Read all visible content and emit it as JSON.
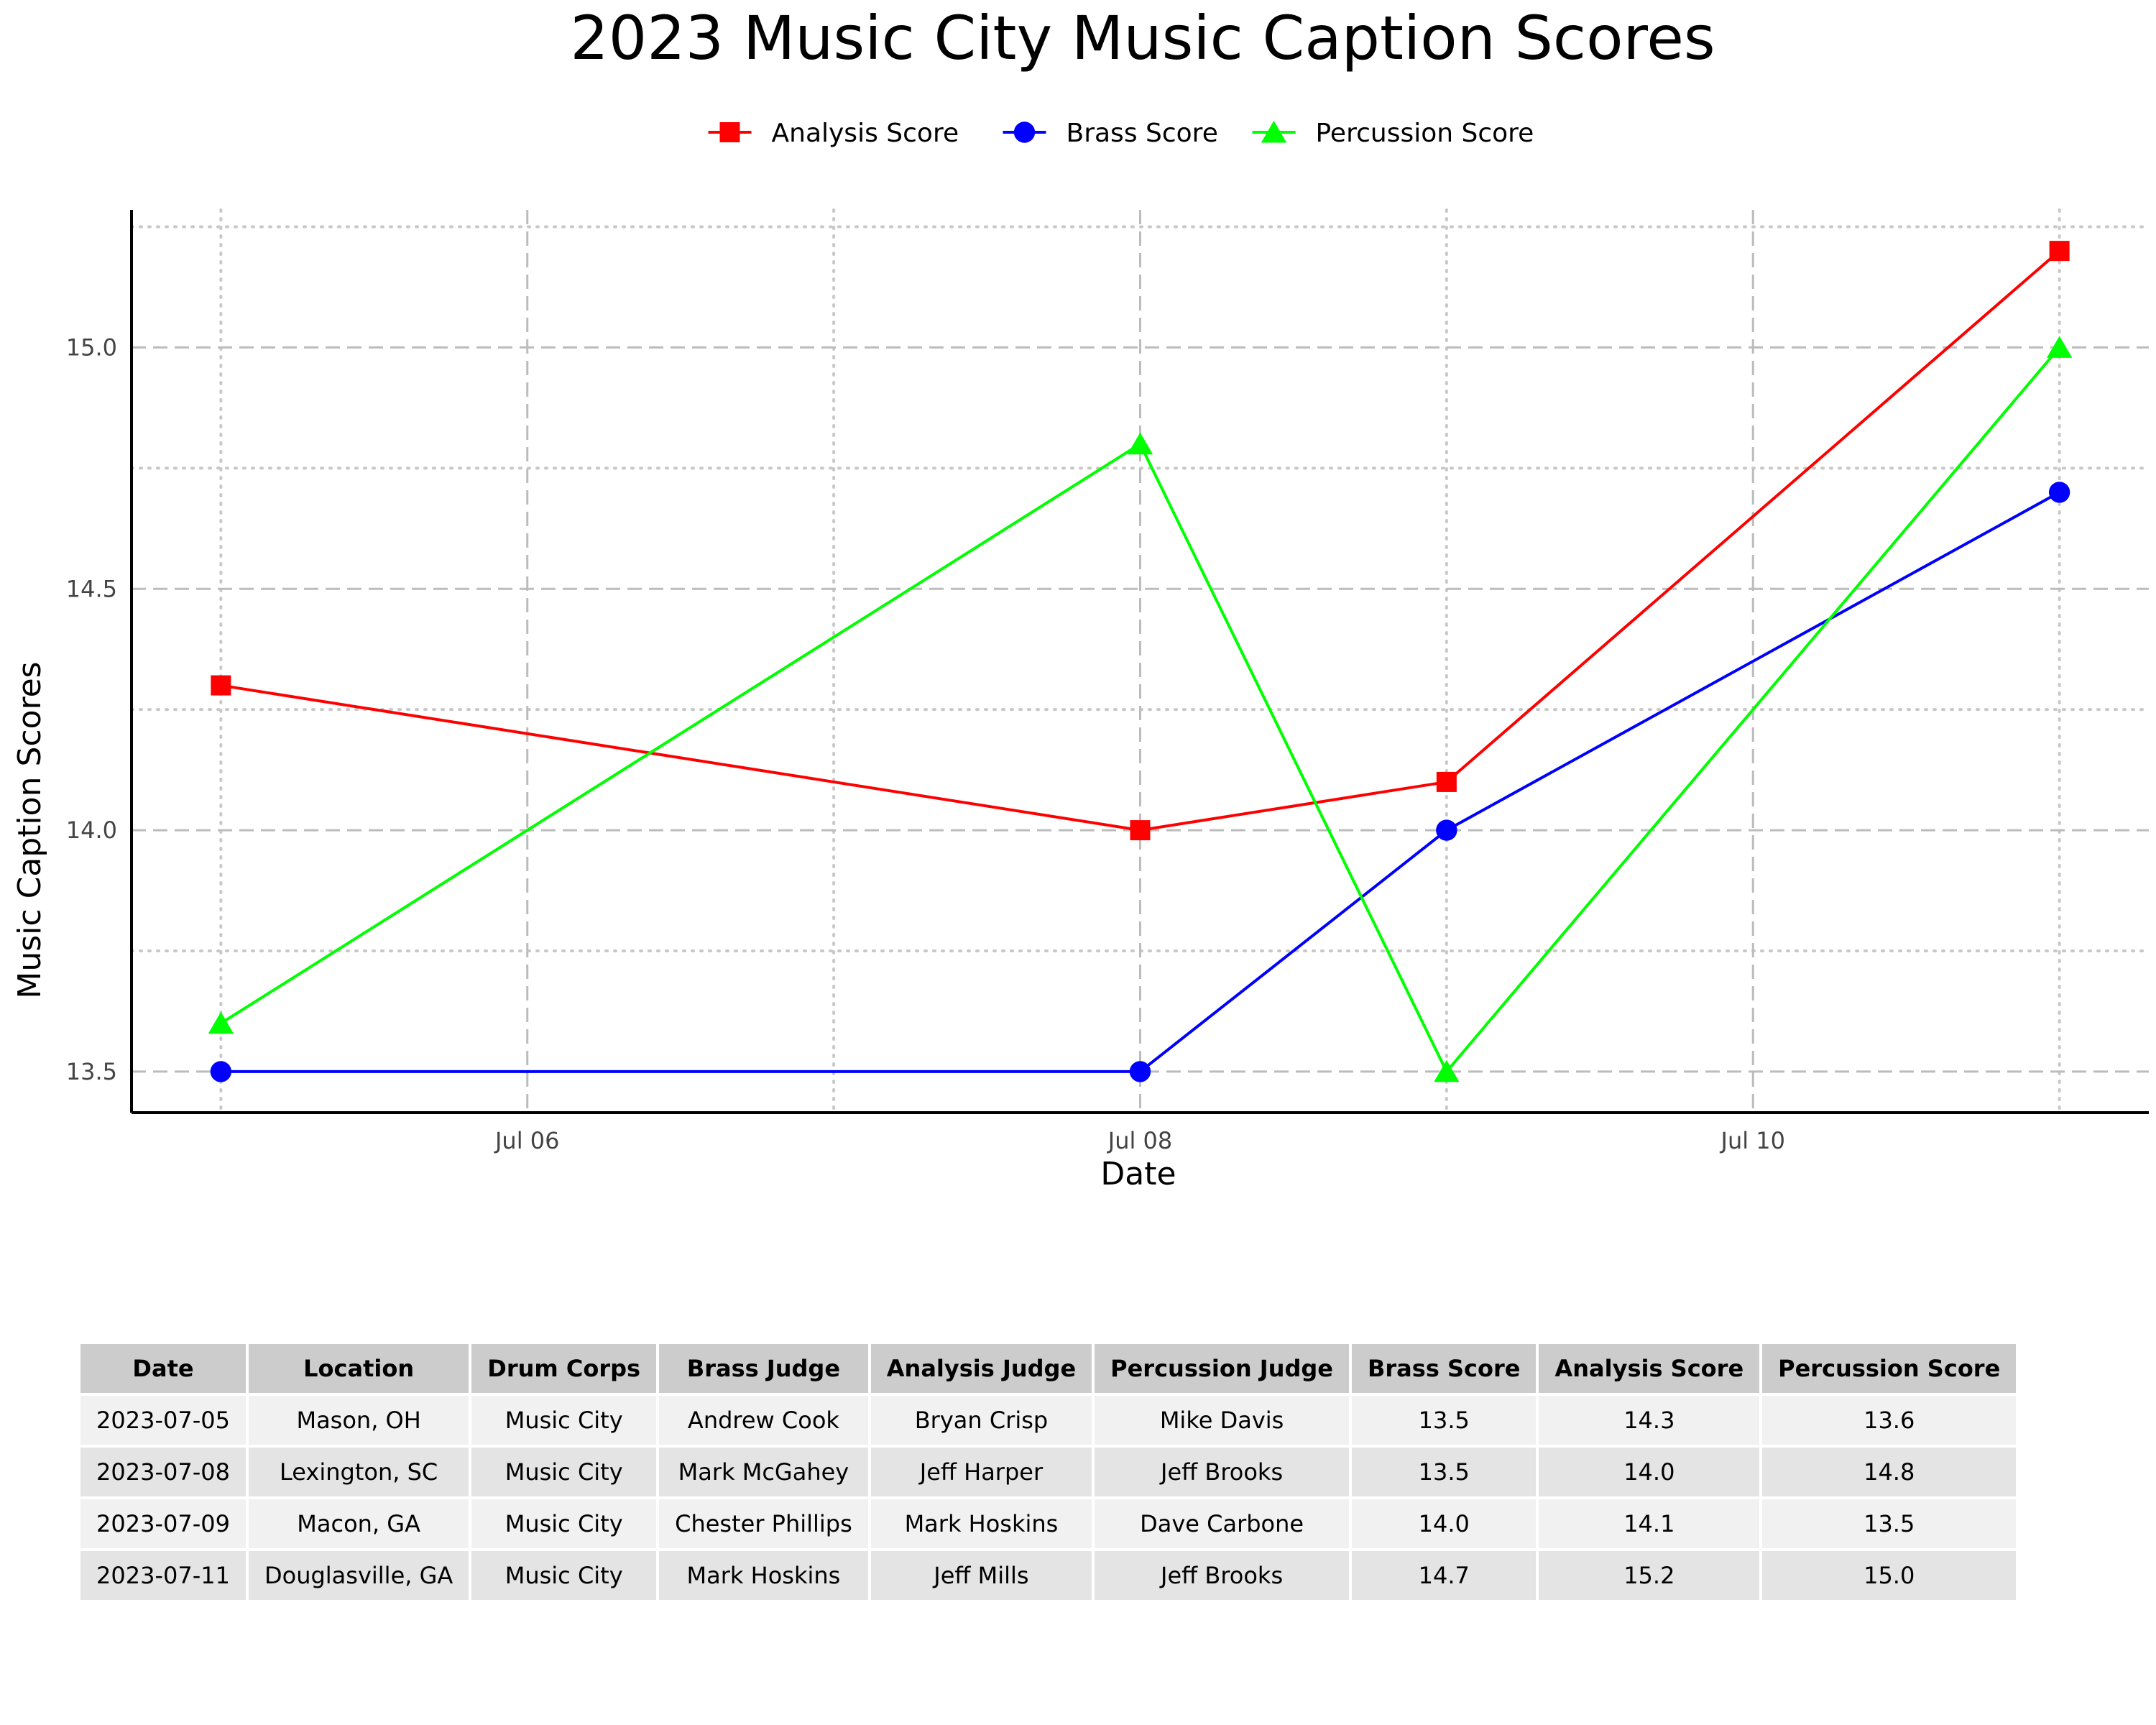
{
  "chart_data": {
    "type": "line",
    "title": "2023 Music City Music Caption Scores",
    "xlabel": "Date",
    "ylabel": "Music Caption Scores",
    "x": [
      "2023-07-05",
      "2023-07-08",
      "2023-07-09",
      "2023-07-11"
    ],
    "x_ticks": [
      {
        "date": "2023-07-06",
        "label": "Jul 06"
      },
      {
        "date": "2023-07-08",
        "label": "Jul 08"
      },
      {
        "date": "2023-07-10",
        "label": "Jul 10"
      }
    ],
    "xlim": [
      "2023-07-04T17:00",
      "2023-07-11T07:00"
    ],
    "y_ticks": [
      13.5,
      14.0,
      14.5,
      15.0
    ],
    "ylim": [
      13.415,
      15.285
    ],
    "grid": true,
    "legend_position": "top-center",
    "series": [
      {
        "name": "Analysis Score",
        "values": [
          14.3,
          14.0,
          14.1,
          15.2
        ],
        "color": "#ff0000",
        "marker": "square"
      },
      {
        "name": "Brass Score",
        "values": [
          13.5,
          13.5,
          14.0,
          14.7
        ],
        "color": "#0000ff",
        "marker": "circle"
      },
      {
        "name": "Percussion Score",
        "values": [
          13.6,
          14.8,
          13.5,
          15.0
        ],
        "color": "#00ff00",
        "marker": "triangle"
      }
    ]
  },
  "table": {
    "headers": [
      "Date",
      "Location",
      "Drum Corps",
      "Brass Judge",
      "Analysis Judge",
      "Percussion Judge",
      "Brass Score",
      "Analysis Score",
      "Percussion Score"
    ],
    "rows": [
      [
        "2023-07-05",
        "Mason, OH",
        "Music City",
        "Andrew Cook",
        "Bryan Crisp",
        "Mike Davis",
        "13.5",
        "14.3",
        "13.6"
      ],
      [
        "2023-07-08",
        "Lexington, SC",
        "Music City",
        "Mark McGahey",
        "Jeff Harper",
        "Jeff Brooks",
        "13.5",
        "14.0",
        "14.8"
      ],
      [
        "2023-07-09",
        "Macon, GA",
        "Music City",
        "Chester Phillips",
        "Mark Hoskins",
        "Dave Carbone",
        "14.0",
        "14.1",
        "13.5"
      ],
      [
        "2023-07-11",
        "Douglasville, GA",
        "Music City",
        "Mark Hoskins",
        "Jeff Mills",
        "Jeff Brooks",
        "14.7",
        "15.2",
        "15.0"
      ]
    ]
  }
}
